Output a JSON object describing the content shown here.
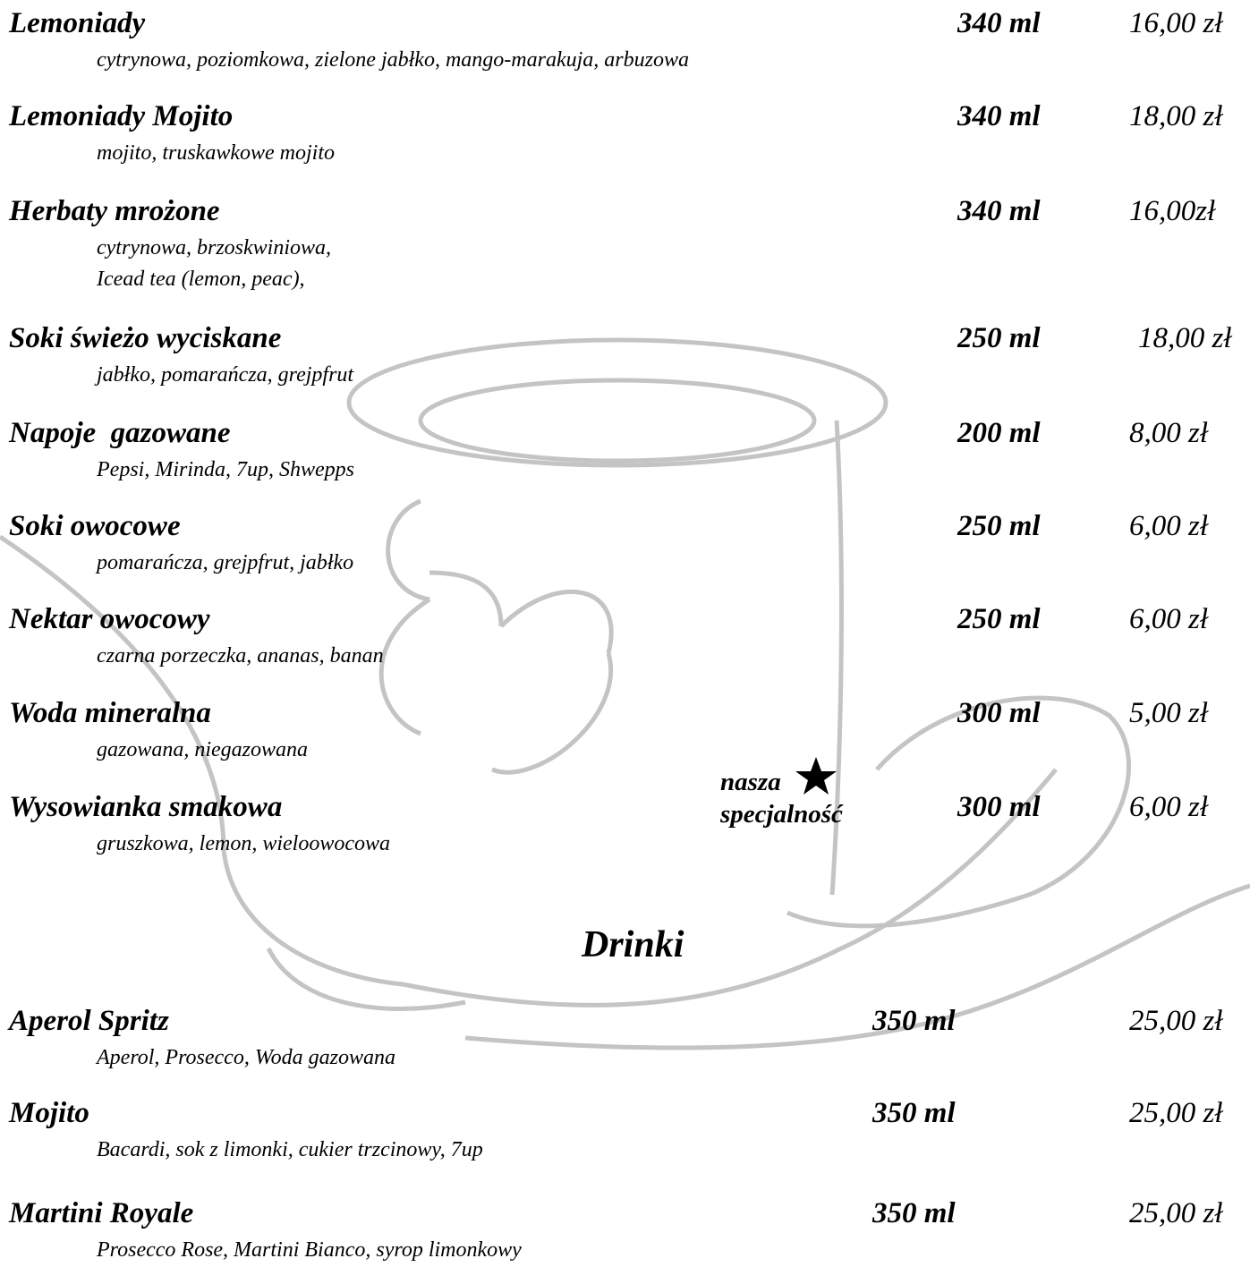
{
  "sections": [
    {
      "items": [
        {
          "name": "Lemoniady",
          "description": [
            "cytrynowa, poziomkowa, zielone jabłko, mango-marakuja, arbuzowa"
          ],
          "volume": "340 ml",
          "price": "16,00 zł"
        },
        {
          "name": "Lemoniady Mojito",
          "description": [
            "mojito, truskawkowe mojito"
          ],
          "volume": "340 ml",
          "price": "18,00 zł"
        },
        {
          "name": "Herbaty mrożone",
          "description": [
            "cytrynowa, brzoskwiniowa,",
            "Icead tea (lemon, peac),"
          ],
          "volume": "340 ml",
          "price": "16,00zł"
        },
        {
          "name": "Soki świeżo wyciskane",
          "description": [
            "jabłko, pomarańcza, grejpfrut"
          ],
          "volume": "250 ml",
          "price": "18,00 zł"
        },
        {
          "name": "Napoje  gazowane",
          "description": [
            "Pepsi, Mirinda, 7up, Shwepps"
          ],
          "volume": "200 ml",
          "price": "8,00 zł"
        },
        {
          "name": "Soki owocowe",
          "description": [
            "pomarańcza, grejpfrut, jabłko"
          ],
          "volume": "250 ml",
          "price": "6,00 zł"
        },
        {
          "name": "Nektar owocowy",
          "description": [
            "czarna porzeczka, ananas, banan"
          ],
          "volume": "250 ml",
          "price": "6,00 zł"
        },
        {
          "name": "Woda mineralna",
          "description": [
            "gazowana, niegazowana"
          ],
          "volume": "300 ml",
          "price": "5,00 zł"
        },
        {
          "name": "Wysowianka smakowa",
          "description": [
            "gruszkowa, lemon, wieloowocowa"
          ],
          "volume": "300 ml",
          "price": "6,00 zł"
        }
      ]
    },
    {
      "heading": "Drinki",
      "items": [
        {
          "name": "Aperol Spritz",
          "description": [
            "Aperol, Prosecco, Woda gazowana"
          ],
          "volume": "350 ml",
          "price": "25,00 zł"
        },
        {
          "name": "Mojito",
          "description": [
            "Bacardi, sok z limonki, cukier trzcinowy, 7up"
          ],
          "volume": "350 ml",
          "price": "25,00 zł"
        },
        {
          "name": "Martini Royale",
          "description": [
            "Prosecco Rose, Martini Bianco, syrop limonkowy"
          ],
          "volume": "350 ml",
          "price": "25,00 zł"
        }
      ]
    }
  ],
  "special": [
    "nasza",
    "specjalność"
  ]
}
